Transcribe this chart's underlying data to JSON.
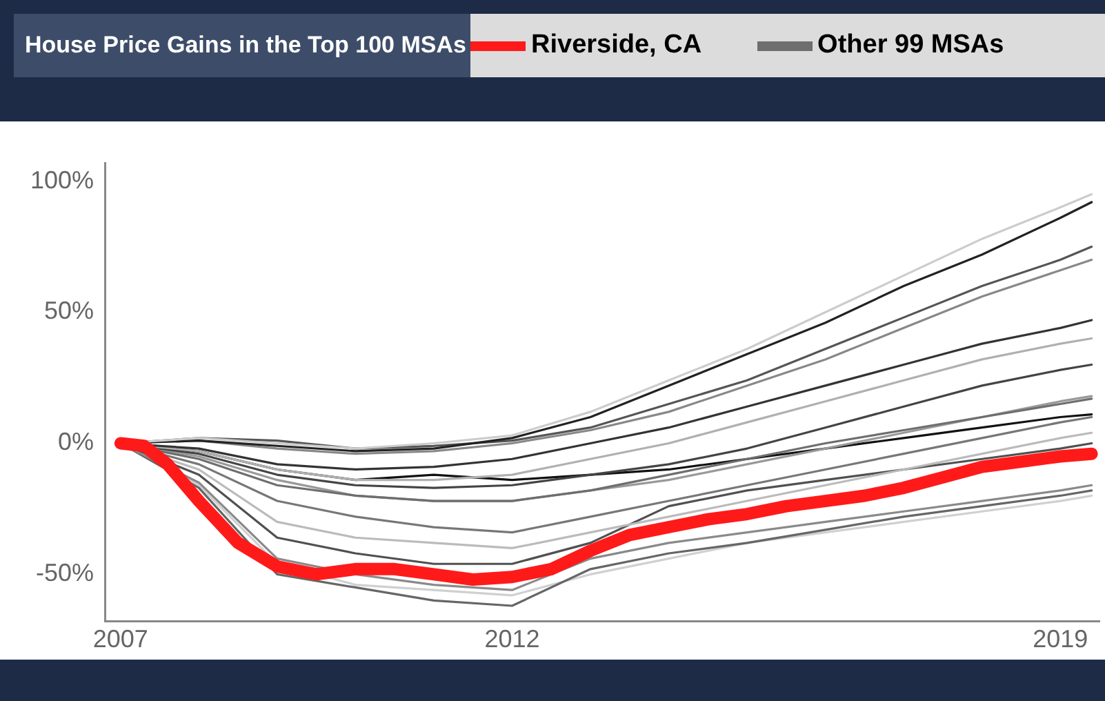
{
  "chart_data": {
    "type": "line",
    "title": "House Price Gains in the Top 100 MSAs",
    "legend": "top",
    "grid": false,
    "marker": "none",
    "line_style": "solid",
    "x": [
      2007,
      2008,
      2009,
      2010,
      2011,
      2012,
      2013,
      2014,
      2015,
      2016,
      2017,
      2018,
      2019,
      2019.4
    ],
    "xlim": [
      2006.8,
      2019.5
    ],
    "xticks": [
      2007,
      2012,
      2019
    ],
    "ylim": [
      -68,
      107
    ],
    "yticks": [
      {
        "value": -50,
        "label": "-50%"
      },
      {
        "value": 0,
        "label": "0%"
      },
      {
        "value": 50,
        "label": "50%"
      },
      {
        "value": 100,
        "label": "100%"
      }
    ],
    "series": [
      {
        "name": "Riverside, CA",
        "color": "#ff1a1a",
        "x": [
          2007,
          2007.3,
          2007.6,
          2008,
          2008.5,
          2009,
          2009.5,
          2010,
          2010.5,
          2011,
          2011.5,
          2012,
          2012.5,
          2013,
          2013.5,
          2014,
          2014.5,
          2015,
          2015.5,
          2016,
          2016.5,
          2017,
          2017.5,
          2018,
          2018.5,
          2019,
          2019.4
        ],
        "values": [
          0,
          -1,
          -8,
          -22,
          -38,
          -47,
          -50,
          -48,
          -48,
          -50,
          -52,
          -51,
          -48,
          -41,
          -35,
          -32,
          -29,
          -27,
          -24,
          -22,
          -20,
          -17,
          -13,
          -9,
          -7,
          -5,
          -4
        ]
      },
      {
        "name": "Other 99 MSAs",
        "color": "#6e6e6e",
        "values": [
          0,
          -6,
          -16,
          -20,
          -22,
          -22,
          -18,
          -12,
          -6,
          0,
          5,
          10,
          15,
          17
        ]
      },
      {
        "color": "#cccccc",
        "values": [
          0,
          2,
          0,
          -2,
          0,
          3,
          12,
          24,
          36,
          50,
          64,
          78,
          90,
          95
        ]
      },
      {
        "color": "#222222",
        "values": [
          0,
          1,
          -1,
          -3,
          -2,
          2,
          10,
          22,
          34,
          46,
          60,
          72,
          86,
          92
        ]
      },
      {
        "color": "#555555",
        "values": [
          0,
          2,
          1,
          -2,
          -1,
          1,
          6,
          15,
          24,
          36,
          48,
          60,
          70,
          75
        ]
      },
      {
        "color": "#888888",
        "values": [
          0,
          1,
          -2,
          -4,
          -3,
          0,
          5,
          12,
          22,
          32,
          44,
          56,
          66,
          70
        ]
      },
      {
        "color": "#333333",
        "values": [
          0,
          -2,
          -8,
          -10,
          -9,
          -6,
          0,
          6,
          14,
          22,
          30,
          38,
          44,
          47
        ]
      },
      {
        "color": "#b0b0b0",
        "values": [
          0,
          -3,
          -10,
          -14,
          -14,
          -12,
          -6,
          0,
          8,
          16,
          24,
          32,
          38,
          40
        ]
      },
      {
        "color": "#444444",
        "values": [
          0,
          -4,
          -12,
          -16,
          -17,
          -16,
          -12,
          -8,
          -2,
          6,
          14,
          22,
          28,
          30
        ]
      },
      {
        "color": "#999999",
        "values": [
          0,
          -5,
          -14,
          -20,
          -22,
          -22,
          -18,
          -14,
          -8,
          -2,
          4,
          10,
          16,
          18
        ]
      },
      {
        "color": "#111111",
        "values": [
          0,
          -3,
          -10,
          -14,
          -12,
          -14,
          -12,
          -10,
          -6,
          -2,
          2,
          6,
          10,
          11
        ]
      },
      {
        "color": "#777777",
        "values": [
          0,
          -8,
          -22,
          -28,
          -32,
          -34,
          -28,
          -22,
          -16,
          -10,
          -4,
          2,
          8,
          10
        ]
      },
      {
        "color": "#bbbbbb",
        "values": [
          0,
          -10,
          -30,
          -36,
          -38,
          -40,
          -34,
          -28,
          -22,
          -16,
          -10,
          -4,
          2,
          4
        ]
      },
      {
        "color": "#505050",
        "values": [
          0,
          -12,
          -36,
          -42,
          -46,
          -46,
          -38,
          -24,
          -18,
          -14,
          -10,
          -6,
          -2,
          0
        ]
      },
      {
        "color": "#8a8a8a",
        "values": [
          0,
          -15,
          -44,
          -50,
          -54,
          -56,
          -44,
          -38,
          -34,
          -30,
          -26,
          -22,
          -18,
          -16
        ]
      },
      {
        "color": "#666666",
        "values": [
          0,
          -17,
          -50,
          -55,
          -60,
          -62,
          -48,
          -42,
          -38,
          -33,
          -28,
          -24,
          -20,
          -18
        ]
      },
      {
        "color": "#d0d0d0",
        "values": [
          0,
          -16,
          -46,
          -54,
          -56,
          -58,
          -50,
          -44,
          -38,
          -34,
          -30,
          -26,
          -22,
          -20
        ]
      }
    ]
  }
}
